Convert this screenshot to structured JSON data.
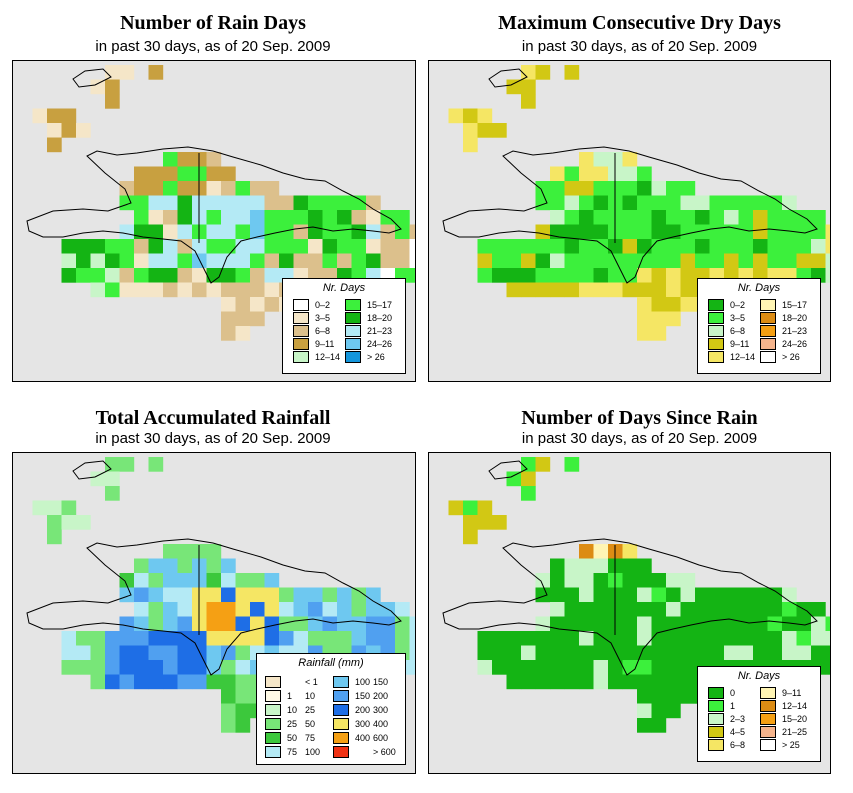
{
  "panels": [
    {
      "title": "Number of Rain Days",
      "subtitle": "in past 30 days, as of  20 Sep. 2009",
      "legend": {
        "title": "Nr. Days",
        "items": [
          {
            "label": "0–2",
            "color": "#ffffff"
          },
          {
            "label": "3–5",
            "color": "#f5e6c8"
          },
          {
            "label": "6–8",
            "color": "#dcc08c"
          },
          {
            "label": "9–11",
            "color": "#c8a040"
          },
          {
            "label": "12–14",
            "color": "#c8f5c8"
          },
          {
            "label": "15–17",
            "color": "#3cf03c"
          },
          {
            "label": "18–20",
            "color": "#14b414"
          },
          {
            "label": "21–23",
            "color": "#b4eaf5"
          },
          {
            "label": "24–26",
            "color": "#6ec8f0"
          },
          {
            "label": "> 26",
            "color": "#1496dc"
          }
        ]
      }
    },
    {
      "title": "Maximum Consecutive Dry Days",
      "subtitle": "in past 30 days, as of  20 Sep. 2009",
      "legend": {
        "title": "Nr. Days",
        "items": [
          {
            "label": "0–2",
            "color": "#14b414"
          },
          {
            "label": "3–5",
            "color": "#3cf03c"
          },
          {
            "label": "6–8",
            "color": "#c8f5c8"
          },
          {
            "label": "9–11",
            "color": "#d2c814"
          },
          {
            "label": "12–14",
            "color": "#f5e664"
          },
          {
            "label": "15–17",
            "color": "#fff5b4"
          },
          {
            "label": "18–20",
            "color": "#dc8c14"
          },
          {
            "label": "21–23",
            "color": "#f5a014"
          },
          {
            "label": "24–26",
            "color": "#f5b48c"
          },
          {
            "label": "> 26",
            "color": "#ffffff"
          }
        ]
      }
    },
    {
      "title": "Total Accumulated Rainfall",
      "subtitle": "in past 30 days, as of  20 Sep. 2009",
      "legend": {
        "title": "Rainfall (mm)",
        "items": [
          {
            "lo": "",
            "hi": "< 1",
            "color": "#f5e6c8"
          },
          {
            "lo": "1",
            "hi": "10",
            "color": "#fffae6"
          },
          {
            "lo": "10",
            "hi": "25",
            "color": "#c8f5c8"
          },
          {
            "lo": "25",
            "hi": "50",
            "color": "#78e678"
          },
          {
            "lo": "50",
            "hi": "75",
            "color": "#3cc83c"
          },
          {
            "lo": "75",
            "hi": "100",
            "color": "#b4eaf5"
          },
          {
            "lo": "100",
            "hi": "150",
            "color": "#6ec8f0"
          },
          {
            "lo": "150",
            "hi": "200",
            "color": "#50a0f0"
          },
          {
            "lo": "200",
            "hi": "300",
            "color": "#1e6ee6"
          },
          {
            "lo": "300",
            "hi": "400",
            "color": "#f5e664"
          },
          {
            "lo": "400",
            "hi": "600",
            "color": "#f5a014"
          },
          {
            "lo": "",
            "hi": "> 600",
            "color": "#f03214"
          }
        ]
      }
    },
    {
      "title": "Number of Days Since Rain",
      "subtitle": "in past 30 days, as of  20 Sep. 2009",
      "legend": {
        "title": "Nr. Days",
        "items": [
          {
            "label": "0",
            "color": "#14b414"
          },
          {
            "label": "1",
            "color": "#3cf03c"
          },
          {
            "label": "2–3",
            "color": "#c8f5c8"
          },
          {
            "label": "4–5",
            "color": "#d2c814"
          },
          {
            "label": "6–8",
            "color": "#f5e664"
          },
          {
            "label": "9–11",
            "color": "#fff5b4"
          },
          {
            "label": "12–14",
            "color": "#dc8c14"
          },
          {
            "label": "15–20",
            "color": "#f5a014"
          },
          {
            "label": "21–25",
            "color": "#f5b48c"
          },
          {
            "label": "> 25",
            "color": "#ffffff"
          }
        ]
      }
    }
  ],
  "palette": {
    "background": "#e5e5e5",
    "coast": "#000000"
  }
}
